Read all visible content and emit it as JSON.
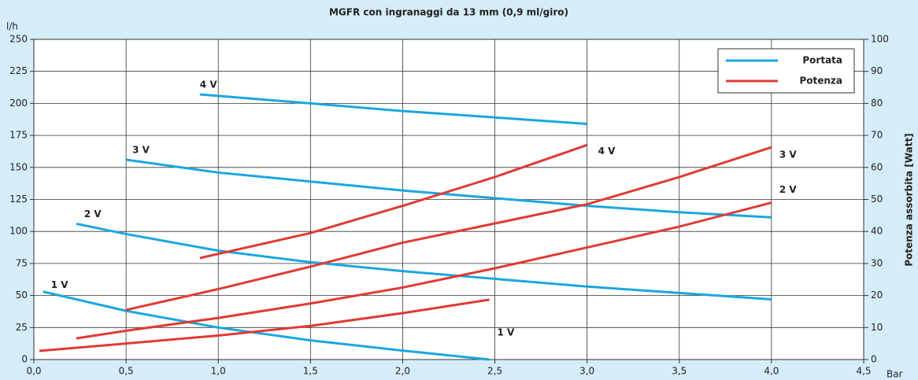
{
  "chart_data": {
    "type": "line",
    "title": "MGFR con ingranaggi da 13 mm (0,9 ml/giro)",
    "y_label": "l/h",
    "x_label": "Bar",
    "y2_label": "Potenza assorbita [Watt]",
    "xlim": [
      0,
      4.5
    ],
    "xticks": [
      {
        "value": 0,
        "label": "0,0"
      },
      {
        "value": 0.5,
        "label": "0,5"
      },
      {
        "value": 1,
        "label": "1,0"
      },
      {
        "value": 1.5,
        "label": "1,5"
      },
      {
        "value": 2,
        "label": "2,0"
      },
      {
        "value": 2.5,
        "label": "2,5"
      },
      {
        "value": 3,
        "label": "3,0"
      },
      {
        "value": 3.5,
        "label": "3,5"
      },
      {
        "value": 4,
        "label": "4,0"
      },
      {
        "value": 4.5,
        "label": "4,5"
      }
    ],
    "ylim": [
      0,
      250
    ],
    "yticks": [
      0,
      25,
      50,
      75,
      100,
      125,
      150,
      175,
      200,
      225,
      250
    ],
    "y2lim": [
      0,
      100
    ],
    "y2ticks": [
      0,
      10,
      20,
      30,
      40,
      50,
      60,
      70,
      80,
      90,
      100
    ],
    "grid": true,
    "legend": "upper right",
    "series": [
      {
        "name": "Portata",
        "color": "#1aa7df",
        "axis": "y",
        "lines": [
          {
            "label": "4 V",
            "x": [
              0.9,
              1.5,
              2.0,
              2.5,
              3.0
            ],
            "values": [
              207,
              200,
              194,
              189,
              184
            ]
          },
          {
            "label": "3 V",
            "x": [
              0.5,
              1.0,
              1.5,
              2.0,
              2.5,
              3.0,
              3.5,
              4.0
            ],
            "values": [
              156,
              146,
              139,
              132,
              126,
              120,
              115,
              111
            ]
          },
          {
            "label": "2 V",
            "x": [
              0.23,
              0.5,
              1.0,
              1.5,
              2.0,
              2.5,
              3.0,
              3.5,
              4.0
            ],
            "values": [
              106,
              98,
              85,
              76,
              69,
              63,
              57,
              52,
              47
            ]
          },
          {
            "label": "1 V",
            "x": [
              0.05,
              0.5,
              1.0,
              1.5,
              2.0,
              2.47
            ],
            "values": [
              53,
              38,
              25,
              15,
              7,
              0
            ]
          }
        ]
      },
      {
        "name": "Potenza",
        "color": "#e03a35",
        "axis": "y2",
        "lines": [
          {
            "label": "4 V",
            "x": [
              0.9,
              1.5,
              2.0,
              2.5,
              3.0
            ],
            "values": [
              31.7,
              39.5,
              48,
              57,
              67
            ]
          },
          {
            "label": "3 V",
            "x": [
              0.5,
              1.0,
              1.5,
              2.0,
              2.5,
              3.0,
              3.5,
              4.0
            ],
            "values": [
              15.5,
              22,
              29,
              36.5,
              42.5,
              48.5,
              57,
              66.3
            ]
          },
          {
            "label": "2 V",
            "x": [
              0.23,
              0.5,
              1.0,
              1.5,
              2.0,
              2.5,
              3.0,
              3.5,
              4.0
            ],
            "values": [
              6.6,
              9,
              13,
              17.5,
              22.5,
              28.5,
              35,
              41.5,
              49
            ]
          },
          {
            "label": "1 V",
            "x": [
              0.03,
              0.5,
              1.0,
              1.5,
              2.0,
              2.47
            ],
            "values": [
              2.7,
              5,
              7.5,
              10.5,
              14.5,
              18.7
            ]
          }
        ]
      }
    ]
  }
}
